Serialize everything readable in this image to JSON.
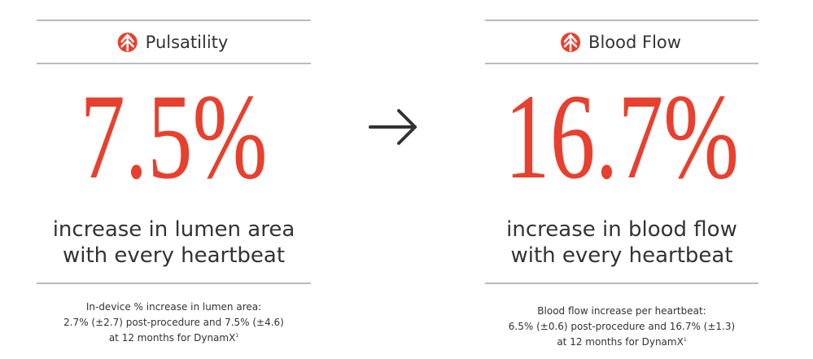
{
  "panels": [
    {
      "title": "Pulsatility",
      "stat": "7.5%",
      "description": [
        "increase in lumen area",
        "with every heartbeat"
      ],
      "footnote": [
        "In-device % increase in lumen area:",
        "2.7% (±2.7) post-procedure and 7.5% (±4.6)",
        "at 12 months for DynamX"
      ],
      "footnote_ref": "1"
    },
    {
      "title": "Blood Flow",
      "stat": "16.7%",
      "description": [
        "increase in blood flow",
        "with every heartbeat"
      ],
      "footnote": [
        "Blood flow increase per heartbeat:",
        "6.5% (±0.6) post-procedure and 16.7% (±1.3)",
        "at 12 months for DynamX"
      ],
      "footnote_ref": "1"
    }
  ]
}
